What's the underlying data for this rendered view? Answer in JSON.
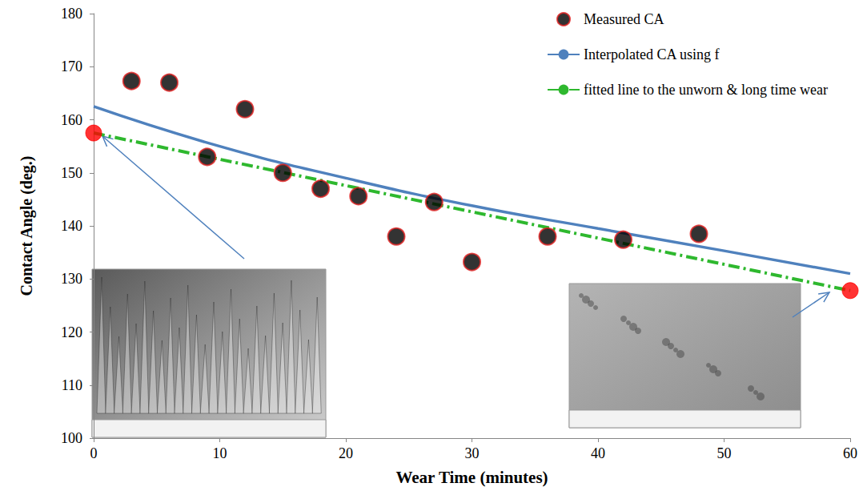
{
  "chart_data": {
    "type": "line",
    "x_label": "Wear Time (minutes)",
    "y_label": "Contact Angle (deg.)",
    "xlim": [
      0,
      60
    ],
    "xticks": [
      0,
      10,
      20,
      30,
      40,
      50,
      60
    ],
    "ylim": [
      100,
      180
    ],
    "yticks": [
      100,
      110,
      120,
      130,
      140,
      150,
      160,
      170,
      180
    ],
    "grid": false,
    "legend": "upper right",
    "series": [
      {
        "name": "Measured CA",
        "type": "scatter",
        "marker": "circle",
        "color": "#000000",
        "x": [
          3,
          6,
          9,
          12,
          15,
          18,
          21,
          24,
          27,
          30,
          36,
          42,
          48
        ],
        "values": [
          167.3,
          167,
          153,
          162,
          150,
          147,
          145.6,
          138,
          144.5,
          133.2,
          138,
          137.4,
          138.5
        ]
      },
      {
        "name": "Interpolated CA using f",
        "type": "line",
        "line_style": "solid",
        "color": "#4f81bd",
        "x": [
          0,
          10,
          20,
          30,
          40,
          50,
          60
        ],
        "values": [
          162.5,
          155,
          149,
          143.8,
          139.5,
          135.3,
          131
        ]
      },
      {
        "name": "fitted line to the unworn & long time wear",
        "type": "line",
        "line_style": "dashdot",
        "color": "#2eb82e",
        "x": [
          0,
          60
        ],
        "values": [
          157.5,
          127.8
        ]
      },
      {
        "type": "scatter",
        "marker": "circle",
        "color": "#ff0000",
        "x": [
          0,
          60
        ],
        "values": [
          157.5,
          127.8
        ]
      }
    ]
  }
}
